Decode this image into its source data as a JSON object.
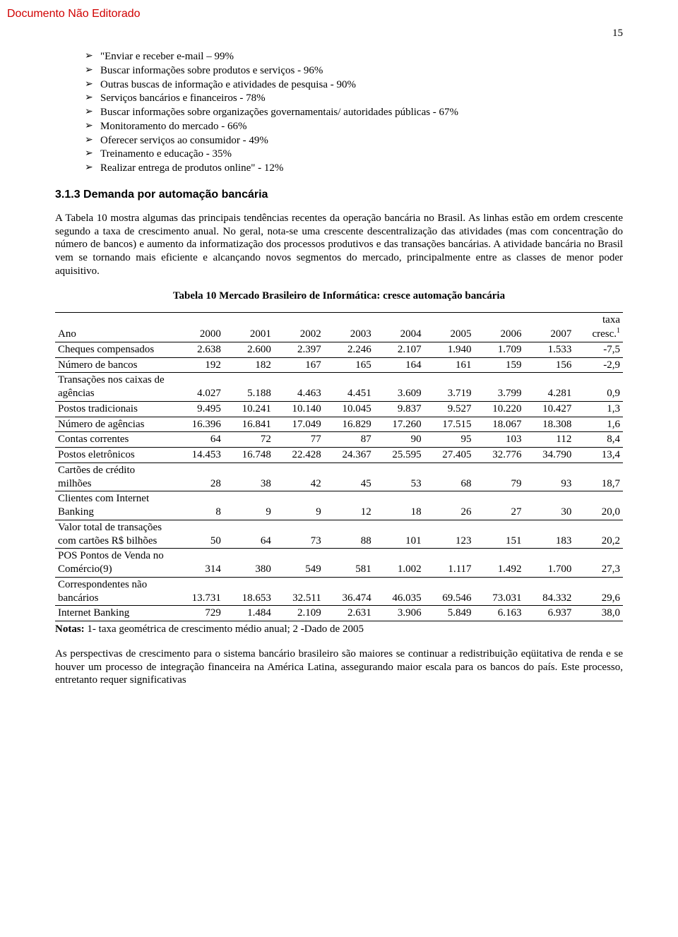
{
  "watermark": "Documento Não Editorado",
  "page_number": "15",
  "bullets": [
    "\"Enviar e receber e-mail – 99%",
    "Buscar informações sobre produtos e serviços - 96%",
    "Outras buscas de informação e atividades de pesquisa - 90%",
    "Serviços bancários e financeiros - 78%",
    "Buscar informações sobre organizações governamentais/ autoridades públicas - 67%",
    "Monitoramento do mercado - 66%",
    "Oferecer serviços ao consumidor - 49%",
    "Treinamento e educação - 35%",
    "Realizar entrega de produtos online\" - 12%"
  ],
  "section_heading": "3.1.3  Demanda por automação bancária",
  "paragraph1": "A Tabela 10 mostra algumas das principais tendências recentes da operação bancária no Brasil. As linhas estão em ordem crescente segundo a taxa de crescimento anual. No geral, nota-se uma crescente descentralização das atividades (mas com concentração do número de bancos) e aumento da informatização dos processos produtivos e das transações bancárias. A atividade bancária no Brasil vem se tornando mais eficiente e alcançando novos segmentos do mercado, principalmente entre as classes de menor poder aquisitivo.",
  "table_caption": "Tabela 10 Mercado Brasileiro de Informática: cresce automação bancária",
  "table": {
    "header_label": "Ano",
    "header_years": [
      "2000",
      "2001",
      "2002",
      "2003",
      "2004",
      "2005",
      "2006",
      "2007"
    ],
    "header_last_line1": "taxa",
    "header_last_line2": "cresc.",
    "header_last_sup": "1",
    "rows": [
      {
        "label": "Cheques compensados",
        "cells": [
          "2.638",
          "2.600",
          "2.397",
          "2.246",
          "2.107",
          "1.940",
          "1.709",
          "1.533",
          "-7,5"
        ]
      },
      {
        "label": "Número de bancos",
        "cells": [
          "192",
          "182",
          "167",
          "165",
          "164",
          "161",
          "159",
          "156",
          "-2,9"
        ]
      },
      {
        "label": "Transações nos caixas de agências",
        "cells": [
          "4.027",
          "5.188",
          "4.463",
          "4.451",
          "3.609",
          "3.719",
          "3.799",
          "4.281",
          "0,9"
        ]
      },
      {
        "label": "Postos tradicionais",
        "cells": [
          "9.495",
          "10.241",
          "10.140",
          "10.045",
          "9.837",
          "9.527",
          "10.220",
          "10.427",
          "1,3"
        ]
      },
      {
        "label": "Número de agências",
        "cells": [
          "16.396",
          "16.841",
          "17.049",
          "16.829",
          "17.260",
          "17.515",
          "18.067",
          "18.308",
          "1,6"
        ]
      },
      {
        "label": "Contas correntes",
        "cells": [
          "64",
          "72",
          "77",
          "87",
          "90",
          "95",
          "103",
          "112",
          "8,4"
        ]
      },
      {
        "label": "Postos eletrônicos",
        "cells": [
          "14.453",
          "16.748",
          "22.428",
          "24.367",
          "25.595",
          "27.405",
          "32.776",
          "34.790",
          "13,4"
        ]
      },
      {
        "label": "Cartões de crédito milhões",
        "cells": [
          "28",
          "38",
          "42",
          "45",
          "53",
          "68",
          "79",
          "93",
          "18,7"
        ]
      },
      {
        "label": "Clientes com Internet Banking",
        "cells": [
          "8",
          "9",
          "9",
          "12",
          "18",
          "26",
          "27",
          "30",
          "20,0"
        ]
      },
      {
        "label": "Valor total de transações com cartões R$ bilhões",
        "cells": [
          "50",
          "64",
          "73",
          "88",
          "101",
          "123",
          "151",
          "183",
          "20,2"
        ]
      },
      {
        "label": "POS Pontos de Venda no Comércio(9)",
        "cells": [
          "314",
          "380",
          "549",
          "581",
          "1.002",
          "1.117",
          "1.492",
          "1.700",
          "27,3"
        ]
      },
      {
        "label": "Correspondentes não bancários",
        "cells": [
          "13.731",
          "18.653",
          "32.511",
          "36.474",
          "46.035",
          "69.546",
          "73.031",
          "84.332",
          "29,6"
        ]
      },
      {
        "label": "Internet Banking",
        "cells": [
          "729",
          "1.484",
          "2.109",
          "2.631",
          "3.906",
          "5.849",
          "6.163",
          "6.937",
          "38,0"
        ]
      }
    ]
  },
  "note_prefix": "Notas:",
  "note_text": " 1- taxa geométrica de crescimento médio anual; 2  -Dado de 2005",
  "paragraph2": "As perspectivas de crescimento para o sistema bancário brasileiro são maiores se continuar a redistribuição eqüitativa de renda e se houver um processo de integração financeira na América Latina, assegurando maior escala para os bancos do país. Este processo, entretanto requer significativas"
}
